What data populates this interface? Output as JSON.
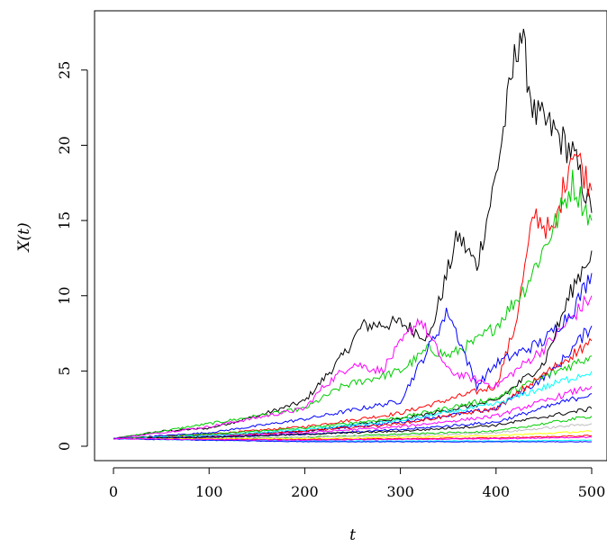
{
  "chart_data": {
    "type": "line",
    "title": "",
    "xlabel": "t",
    "ylabel": "X(t)",
    "xlim": [
      0,
      500
    ],
    "ylim": [
      0,
      27.8
    ],
    "xticks": [
      0,
      100,
      200,
      300,
      400,
      500
    ],
    "xtick_labels": [
      "0",
      "100",
      "200",
      "300",
      "400",
      "500"
    ],
    "yticks": [
      0,
      5,
      10,
      15,
      20,
      25
    ],
    "ytick_labels": [
      "0",
      "5",
      "10",
      "15",
      "20",
      "25"
    ],
    "grid": false,
    "legend": "none",
    "colors": [
      "#000000",
      "#ff0000",
      "#00cd00",
      "#0000ff",
      "#00ffff",
      "#ff00ff",
      "#ffff00",
      "#bebebe"
    ],
    "series": [
      {
        "color": "#000000",
        "x": [
          0,
          50,
          100,
          150,
          200,
          240,
          260,
          300,
          330,
          360,
          380,
          400,
          425,
          440,
          460,
          480,
          500
        ],
        "values": [
          0.5,
          1.0,
          1.2,
          2.0,
          3.0,
          6.0,
          8.0,
          8.2,
          7.2,
          14.0,
          12.0,
          18.0,
          27.8,
          22.0,
          21.0,
          19.5,
          15.5
        ]
      },
      {
        "color": "#ff0000",
        "x": [
          0,
          100,
          200,
          300,
          400,
          420,
          440,
          460,
          480,
          500
        ],
        "values": [
          0.5,
          0.8,
          1.3,
          2.2,
          4.0,
          8.0,
          15.5,
          14.0,
          20.0,
          17.0
        ]
      },
      {
        "color": "#00cd00",
        "x": [
          0,
          100,
          200,
          240,
          300,
          330,
          350,
          380,
          400,
          430,
          460,
          480,
          500
        ],
        "values": [
          0.5,
          1.5,
          2.5,
          4.0,
          5.0,
          6.5,
          6.0,
          7.0,
          8.0,
          10.5,
          14.5,
          17.5,
          15.0
        ]
      },
      {
        "color": "#ff00ff",
        "x": [
          0,
          100,
          200,
          220,
          250,
          280,
          320,
          350,
          400,
          450,
          500
        ],
        "values": [
          0.5,
          1.3,
          2.5,
          4.0,
          5.5,
          5.0,
          8.5,
          5.0,
          4.0,
          6.5,
          10.0
        ]
      },
      {
        "color": "#0000ff",
        "x": [
          0,
          100,
          200,
          300,
          350,
          380,
          400,
          450,
          480,
          500
        ],
        "values": [
          0.5,
          0.9,
          1.8,
          3.0,
          9.0,
          4.0,
          5.5,
          7.0,
          9.0,
          11.5
        ]
      },
      {
        "color": "#000000",
        "x": [
          0,
          100,
          200,
          300,
          400,
          450,
          480,
          500
        ],
        "values": [
          0.5,
          0.7,
          1.0,
          1.8,
          3.0,
          5.5,
          10.5,
          13.0
        ]
      },
      {
        "color": "#0000ff",
        "x": [
          0,
          100,
          200,
          300,
          400,
          460,
          500
        ],
        "values": [
          0.5,
          0.7,
          1.0,
          1.6,
          2.5,
          5.0,
          8.0
        ]
      },
      {
        "color": "#00cd00",
        "x": [
          0,
          100,
          200,
          300,
          400,
          500
        ],
        "values": [
          0.5,
          0.8,
          1.2,
          1.9,
          3.2,
          6.0
        ]
      },
      {
        "color": "#ff0000",
        "x": [
          0,
          100,
          200,
          300,
          400,
          500
        ],
        "values": [
          0.5,
          0.7,
          1.0,
          1.5,
          2.5,
          7.0
        ]
      },
      {
        "color": "#00ffff",
        "x": [
          0,
          100,
          200,
          300,
          400,
          500
        ],
        "values": [
          0.5,
          0.7,
          1.1,
          1.7,
          2.8,
          5.0
        ]
      },
      {
        "color": "#ff00ff",
        "x": [
          0,
          100,
          200,
          300,
          400,
          500
        ],
        "values": [
          0.5,
          0.6,
          0.9,
          1.3,
          2.0,
          4.0
        ]
      },
      {
        "color": "#0000ff",
        "x": [
          0,
          100,
          200,
          300,
          400,
          500
        ],
        "values": [
          0.5,
          0.6,
          0.8,
          1.1,
          1.6,
          3.5
        ]
      },
      {
        "color": "#000000",
        "x": [
          0,
          100,
          200,
          300,
          400,
          500
        ],
        "values": [
          0.5,
          0.6,
          0.8,
          1.0,
          1.4,
          2.5
        ]
      },
      {
        "color": "#00cd00",
        "x": [
          0,
          100,
          200,
          300,
          400,
          500
        ],
        "values": [
          0.5,
          0.5,
          0.6,
          0.8,
          1.0,
          2.0
        ]
      },
      {
        "color": "#bebebe",
        "x": [
          0,
          100,
          200,
          300,
          400,
          500
        ],
        "values": [
          0.5,
          0.5,
          0.6,
          0.7,
          0.9,
          1.5
        ]
      },
      {
        "color": "#ffff00",
        "x": [
          0,
          100,
          200,
          300,
          400,
          500
        ],
        "values": [
          0.5,
          0.5,
          0.5,
          0.6,
          0.7,
          1.0
        ]
      },
      {
        "color": "#ff0000",
        "x": [
          0,
          100,
          200,
          300,
          400,
          500
        ],
        "values": [
          0.5,
          0.45,
          0.45,
          0.5,
          0.55,
          0.7
        ]
      },
      {
        "color": "#00ffff",
        "x": [
          0,
          100,
          200,
          300,
          400,
          500
        ],
        "values": [
          0.5,
          0.4,
          0.35,
          0.35,
          0.35,
          0.4
        ]
      },
      {
        "color": "#0000ff",
        "x": [
          0,
          100,
          200,
          300,
          400,
          500
        ],
        "values": [
          0.5,
          0.4,
          0.3,
          0.3,
          0.3,
          0.3
        ]
      },
      {
        "color": "#ff00ff",
        "x": [
          0,
          100,
          200,
          300,
          400,
          500
        ],
        "values": [
          0.5,
          0.45,
          0.4,
          0.45,
          0.5,
          0.6
        ]
      }
    ]
  }
}
